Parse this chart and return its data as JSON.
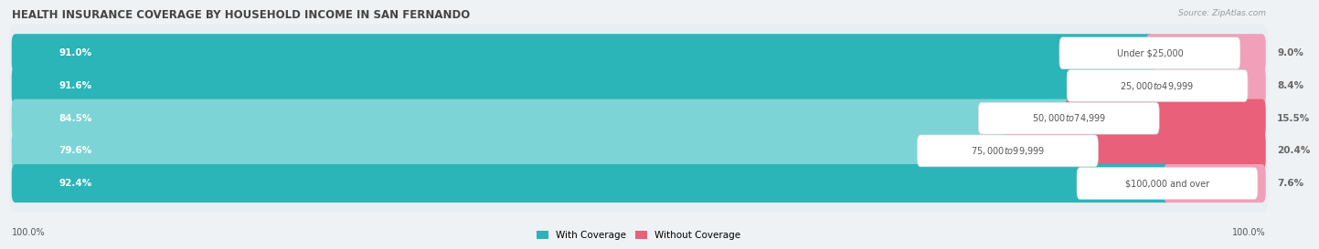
{
  "title": "HEALTH INSURANCE COVERAGE BY HOUSEHOLD INCOME IN SAN FERNANDO",
  "source": "Source: ZipAtlas.com",
  "categories": [
    "Under $25,000",
    "$25,000 to $49,999",
    "$50,000 to $74,999",
    "$75,000 to $99,999",
    "$100,000 and over"
  ],
  "with_coverage": [
    91.0,
    91.6,
    84.5,
    79.6,
    92.4
  ],
  "without_coverage": [
    9.0,
    8.4,
    15.5,
    20.4,
    7.6
  ],
  "color_with_dark": "#2bb5b8",
  "color_with_light": "#7dd4d6",
  "color_without_dark": "#e8607a",
  "color_without_light": "#f0a0b8",
  "row_bg_color": "#e8eef2",
  "background": "#eef2f5",
  "text_white": "#ffffff",
  "text_dark": "#555555",
  "text_pct_outside": "#666666",
  "title_color": "#444444",
  "source_color": "#999999",
  "bar_height": 0.58,
  "label_fontsize": 7.5,
  "title_fontsize": 8.5,
  "source_fontsize": 6.5,
  "legend_fontsize": 7.5,
  "axis_label_value": "100.0%"
}
